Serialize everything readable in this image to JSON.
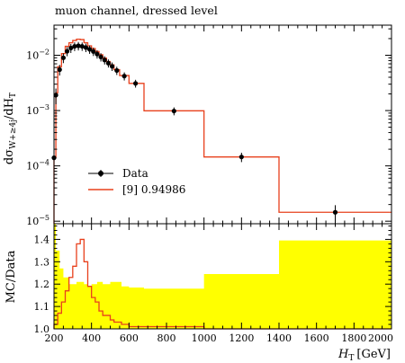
{
  "chart_data": [
    {
      "type": "line",
      "panel": "main",
      "title": "muon channel, dressed level",
      "ylabel_main": "dσ",
      "ylabel_sub": "W+≥4j",
      "ylabel_tail": "/dH",
      "ylabel_tail_sub": "T",
      "yscale": "log",
      "ylim": [
        9e-06,
        0.035
      ],
      "xlim": [
        200,
        2000
      ],
      "y_tick_labels": [
        {
          "base": "10",
          "exp": "−2",
          "value": 0.01
        },
        {
          "base": "10",
          "exp": "−3",
          "value": 0.001
        },
        {
          "base": "10",
          "exp": "−4",
          "value": 0.0001
        },
        {
          "base": "10",
          "exp": "−5",
          "value": 1e-05
        }
      ],
      "series": [
        {
          "name": "Data",
          "color": "#000000",
          "points": [
            {
              "x": 200,
              "y": 0.00014,
              "yerr": 6e-05
            },
            {
              "x": 210,
              "y": 0.0019,
              "yerr": 0.0006
            },
            {
              "x": 230,
              "y": 0.0055,
              "yerr": 0.0012
            },
            {
              "x": 250,
              "y": 0.009,
              "yerr": 0.0018
            },
            {
              "x": 270,
              "y": 0.0118,
              "yerr": 0.0022
            },
            {
              "x": 290,
              "y": 0.0135,
              "yerr": 0.0025
            },
            {
              "x": 310,
              "y": 0.0145,
              "yerr": 0.0026
            },
            {
              "x": 330,
              "y": 0.0148,
              "yerr": 0.0026
            },
            {
              "x": 350,
              "y": 0.0145,
              "yerr": 0.0025
            },
            {
              "x": 370,
              "y": 0.0138,
              "yerr": 0.0024
            },
            {
              "x": 390,
              "y": 0.0128,
              "yerr": 0.0022
            },
            {
              "x": 410,
              "y": 0.0117,
              "yerr": 0.002
            },
            {
              "x": 430,
              "y": 0.0105,
              "yerr": 0.0018
            },
            {
              "x": 450,
              "y": 0.0093,
              "yerr": 0.0016
            },
            {
              "x": 470,
              "y": 0.0082,
              "yerr": 0.0014
            },
            {
              "x": 490,
              "y": 0.0072,
              "yerr": 0.0012
            },
            {
              "x": 510,
              "y": 0.0063,
              "yerr": 0.0011
            },
            {
              "x": 535,
              "y": 0.0053,
              "yerr": 0.0009
            },
            {
              "x": 575,
              "y": 0.0042,
              "yerr": 0.0007
            },
            {
              "x": 635,
              "y": 0.0031,
              "yerr": 0.0005
            },
            {
              "x": 840,
              "y": 0.00098,
              "yerr": 0.00016
            },
            {
              "x": 1200,
              "y": 0.000145,
              "yerr": 2.8e-05
            },
            {
              "x": 1700,
              "y": 1.45e-05,
              "yerr": 5e-06
            }
          ]
        },
        {
          "name": "[9] 0.94986",
          "color": "#e8401c",
          "bins": [
            {
              "lo": 200,
              "hi": 210,
              "y": 0.00014
            },
            {
              "lo": 210,
              "hi": 220,
              "y": 0.0021
            },
            {
              "lo": 220,
              "hi": 240,
              "y": 0.0062
            },
            {
              "lo": 240,
              "hi": 260,
              "y": 0.0107
            },
            {
              "lo": 260,
              "hi": 280,
              "y": 0.0145
            },
            {
              "lo": 280,
              "hi": 300,
              "y": 0.0168
            },
            {
              "lo": 300,
              "hi": 320,
              "y": 0.0185
            },
            {
              "lo": 320,
              "hi": 340,
              "y": 0.0195
            },
            {
              "lo": 340,
              "hi": 360,
              "y": 0.0192
            },
            {
              "lo": 360,
              "hi": 380,
              "y": 0.0168
            },
            {
              "lo": 380,
              "hi": 400,
              "y": 0.0148
            },
            {
              "lo": 400,
              "hi": 420,
              "y": 0.0132
            },
            {
              "lo": 420,
              "hi": 440,
              "y": 0.0117
            },
            {
              "lo": 440,
              "hi": 460,
              "y": 0.0102
            },
            {
              "lo": 460,
              "hi": 480,
              "y": 0.0089
            },
            {
              "lo": 480,
              "hi": 500,
              "y": 0.0077
            },
            {
              "lo": 500,
              "hi": 520,
              "y": 0.0067
            },
            {
              "lo": 520,
              "hi": 550,
              "y": 0.0055
            },
            {
              "lo": 550,
              "hi": 600,
              "y": 0.0043
            },
            {
              "lo": 600,
              "hi": 680,
              "y": 0.0031
            },
            {
              "lo": 680,
              "hi": 1000,
              "y": 0.00099
            },
            {
              "lo": 1000,
              "hi": 1400,
              "y": 0.000145
            },
            {
              "lo": 1400,
              "hi": 2000,
              "y": 1.45e-05
            }
          ]
        }
      ],
      "legend": [
        {
          "label": "Data",
          "kind": "marker"
        },
        {
          "label": "[9] 0.94986",
          "kind": "line"
        }
      ],
      "legend_position": "lower-left"
    },
    {
      "type": "area",
      "panel": "ratio",
      "ylabel": "MC/Data",
      "xlabel_main": "H",
      "xlabel_sub": "T",
      "xlabel_unit": "[GeV]",
      "xlim": [
        200,
        2000
      ],
      "ylim": [
        1.0,
        1.47
      ],
      "x_ticks": [
        200,
        400,
        600,
        800,
        1000,
        1200,
        1400,
        1600,
        1800,
        2000
      ],
      "y_ticks": [
        1.0,
        1.1,
        1.2,
        1.3,
        1.4
      ],
      "band_color": "#ffff00",
      "band_bins": [
        {
          "lo": 200,
          "hi": 210,
          "y": 1.47
        },
        {
          "lo": 210,
          "hi": 230,
          "y": 1.35
        },
        {
          "lo": 230,
          "hi": 250,
          "y": 1.27
        },
        {
          "lo": 250,
          "hi": 280,
          "y": 1.23
        },
        {
          "lo": 280,
          "hi": 300,
          "y": 1.2
        },
        {
          "lo": 300,
          "hi": 320,
          "y": 1.2
        },
        {
          "lo": 320,
          "hi": 360,
          "y": 1.21
        },
        {
          "lo": 360,
          "hi": 380,
          "y": 1.2
        },
        {
          "lo": 380,
          "hi": 400,
          "y": 1.19
        },
        {
          "lo": 400,
          "hi": 430,
          "y": 1.2
        },
        {
          "lo": 430,
          "hi": 460,
          "y": 1.21
        },
        {
          "lo": 460,
          "hi": 500,
          "y": 1.2
        },
        {
          "lo": 500,
          "hi": 560,
          "y": 1.21
        },
        {
          "lo": 560,
          "hi": 600,
          "y": 1.19
        },
        {
          "lo": 600,
          "hi": 680,
          "y": 1.185
        },
        {
          "lo": 680,
          "hi": 1000,
          "y": 1.18
        },
        {
          "lo": 1000,
          "hi": 1400,
          "y": 1.245
        },
        {
          "lo": 1400,
          "hi": 2000,
          "y": 1.395
        }
      ],
      "ratio_bins": [
        {
          "lo": 200,
          "hi": 220,
          "y": 1.02
        },
        {
          "lo": 220,
          "hi": 240,
          "y": 1.07
        },
        {
          "lo": 240,
          "hi": 260,
          "y": 1.12
        },
        {
          "lo": 260,
          "hi": 280,
          "y": 1.17
        },
        {
          "lo": 280,
          "hi": 300,
          "y": 1.23
        },
        {
          "lo": 300,
          "hi": 320,
          "y": 1.28
        },
        {
          "lo": 320,
          "hi": 340,
          "y": 1.38
        },
        {
          "lo": 340,
          "hi": 360,
          "y": 1.4
        },
        {
          "lo": 360,
          "hi": 380,
          "y": 1.3
        },
        {
          "lo": 380,
          "hi": 400,
          "y": 1.19
        },
        {
          "lo": 400,
          "hi": 420,
          "y": 1.14
        },
        {
          "lo": 420,
          "hi": 440,
          "y": 1.12
        },
        {
          "lo": 440,
          "hi": 460,
          "y": 1.08
        },
        {
          "lo": 460,
          "hi": 480,
          "y": 1.06
        },
        {
          "lo": 480,
          "hi": 500,
          "y": 1.06
        },
        {
          "lo": 500,
          "hi": 520,
          "y": 1.04
        },
        {
          "lo": 520,
          "hi": 560,
          "y": 1.03
        },
        {
          "lo": 560,
          "hi": 600,
          "y": 1.02
        },
        {
          "lo": 600,
          "hi": 680,
          "y": 1.01
        },
        {
          "lo": 680,
          "hi": 1000,
          "y": 1.01
        },
        {
          "lo": 1000,
          "hi": 1400,
          "y": 1.0
        },
        {
          "lo": 1400,
          "hi": 2000,
          "y": 1.0
        }
      ],
      "ratio_color": "#e8401c"
    }
  ]
}
